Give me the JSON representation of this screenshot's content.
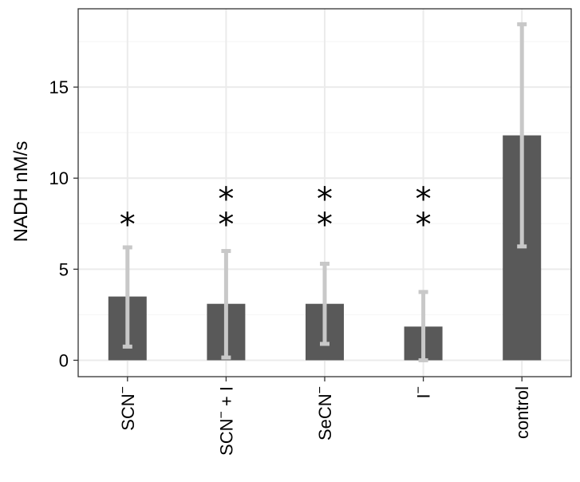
{
  "chart_data": {
    "type": "bar",
    "title": "",
    "xlabel": "",
    "ylabel": "NADH nM/s",
    "categories": [
      {
        "base": "SCN",
        "sup": "−",
        "tail": ""
      },
      {
        "base": "SCN",
        "sup": "−",
        "tail": " + I"
      },
      {
        "base": "SeCN",
        "sup": "−",
        "tail": ""
      },
      {
        "base": "I",
        "sup": "−",
        "tail": ""
      },
      {
        "base": "control",
        "sup": "",
        "tail": ""
      }
    ],
    "values": [
      3.5,
      3.1,
      3.1,
      1.85,
      12.35
    ],
    "error_low": [
      0.75,
      0.15,
      0.9,
      0.0,
      6.25
    ],
    "error_high": [
      6.2,
      6.0,
      5.3,
      3.75,
      18.45
    ],
    "significance": [
      "*",
      "**",
      "**",
      "**",
      ""
    ],
    "ylim": [
      -0.9,
      19.3
    ],
    "yticks": [
      0,
      5,
      10,
      15
    ],
    "grid": true,
    "colors": {
      "bar": "#595959",
      "error_bar": "#c8c8c8",
      "grid_major": "#ebebeb",
      "grid_minor": "#f5f5f5",
      "panel_border": "#333333"
    }
  }
}
